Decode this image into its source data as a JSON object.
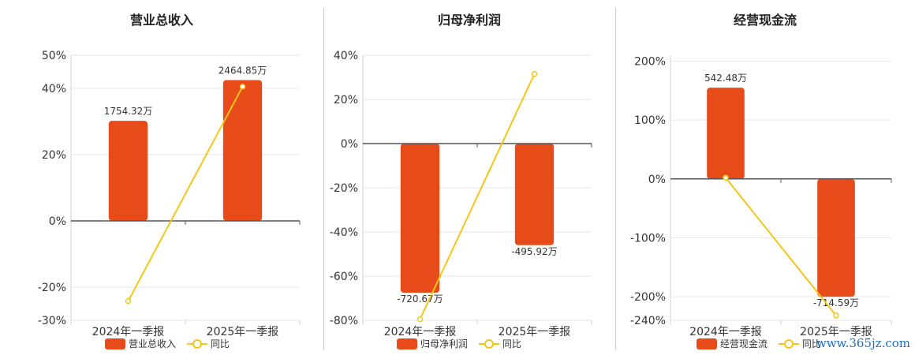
{
  "colors": {
    "bar": "#e84b1a",
    "line": "#f5c518",
    "grid": "#e6e6e6",
    "axis": "#555555"
  },
  "watermark": "www.365jz.com",
  "chart_data": [
    {
      "type": "bar",
      "title": "营业总收入",
      "categories": [
        "2024年一季报",
        "2025年一季报"
      ],
      "ylim": [
        -30,
        50
      ],
      "yticks": [
        -30,
        -20,
        0,
        20,
        40,
        50
      ],
      "ytick_labels": [
        "-30%",
        "-20%",
        "0%",
        "20%",
        "40%",
        "50%"
      ],
      "bar_pct": [
        30.2,
        42.5
      ],
      "bar_labels": [
        "1754.32万",
        "2464.85万"
      ],
      "line_pct": [
        -24.2,
        40.5
      ],
      "legend": [
        "营业总收入",
        "同比"
      ],
      "grid": true,
      "legend_position": "bottom"
    },
    {
      "type": "bar",
      "title": "归母净利润",
      "categories": [
        "2024年一季报",
        "2025年一季报"
      ],
      "ylim": [
        -80,
        40
      ],
      "yticks": [
        -80,
        -60,
        -40,
        -20,
        0,
        20,
        40
      ],
      "ytick_labels": [
        "-80%",
        "-60%",
        "-40%",
        "-20%",
        "0%",
        "20%",
        "40%"
      ],
      "bar_pct": [
        -67.5,
        -46.0
      ],
      "bar_labels": [
        "-720.67万",
        "-495.92万"
      ],
      "line_pct": [
        -79.5,
        31.5
      ],
      "legend": [
        "归母净利润",
        "同比"
      ],
      "grid": true,
      "legend_position": "bottom"
    },
    {
      "type": "bar",
      "title": "经营现金流",
      "categories": [
        "2024年一季报",
        "2025年一季报"
      ],
      "ylim": [
        -240,
        210
      ],
      "yticks": [
        -240,
        -200,
        -100,
        0,
        100,
        200
      ],
      "ytick_labels": [
        "-240%",
        "-200%",
        "-100%",
        "0%",
        "100%",
        "200%"
      ],
      "bar_pct": [
        155,
        -200
      ],
      "bar_labels": [
        "542.48万",
        "-714.59万"
      ],
      "line_pct": [
        2,
        -232
      ],
      "legend": [
        "经营现金流",
        "同比"
      ],
      "grid": true,
      "legend_position": "bottom"
    }
  ]
}
